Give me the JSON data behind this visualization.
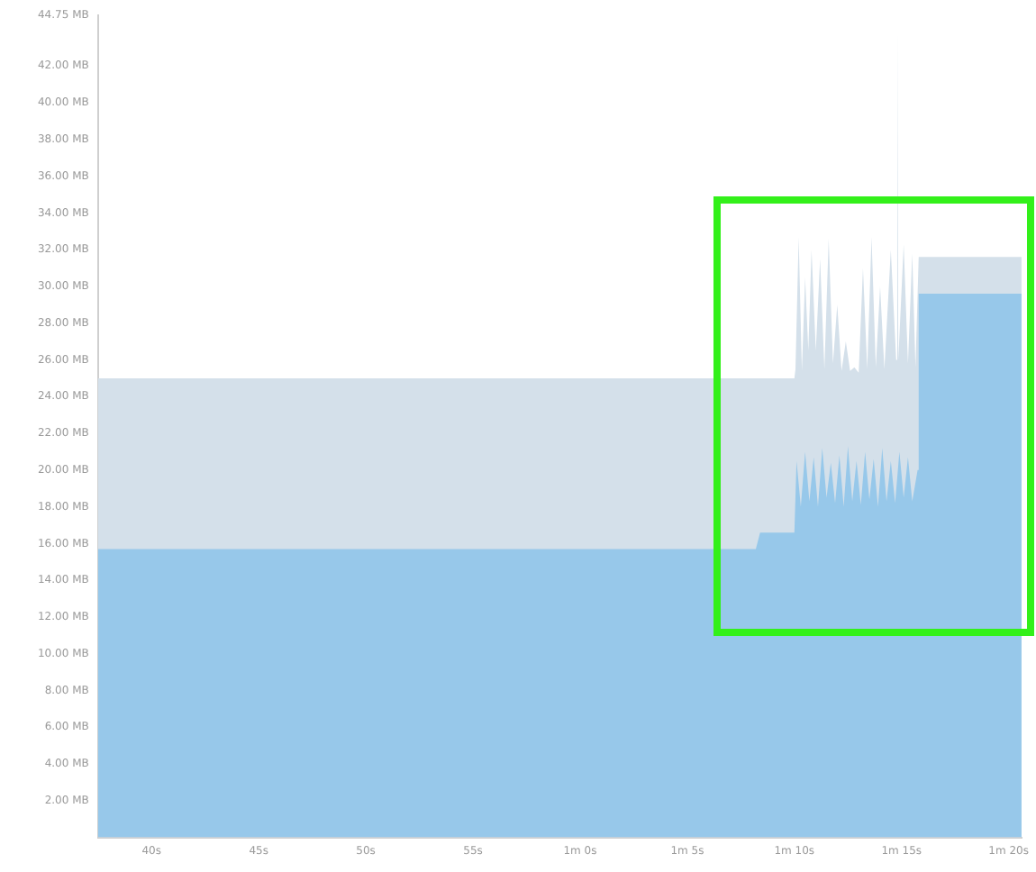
{
  "chart_data": {
    "type": "area",
    "grid": false,
    "legend": false,
    "xlim": [
      37.5,
      80.6
    ],
    "xticks": [
      {
        "value": 40,
        "label": "40s"
      },
      {
        "value": 45,
        "label": "45s"
      },
      {
        "value": 50,
        "label": "50s"
      },
      {
        "value": 55,
        "label": "55s"
      },
      {
        "value": 60,
        "label": "1m 0s"
      },
      {
        "value": 65,
        "label": "1m 5s"
      },
      {
        "value": 70,
        "label": "1m 10s"
      },
      {
        "value": 75,
        "label": "1m 15s"
      },
      {
        "value": 80,
        "label": "1m 20s"
      }
    ],
    "ylim": [
      0,
      44.75
    ],
    "yticks": [
      {
        "value": 2,
        "label": "2.00 MB"
      },
      {
        "value": 4,
        "label": "4.00 MB"
      },
      {
        "value": 6,
        "label": "6.00 MB"
      },
      {
        "value": 8,
        "label": "8.00 MB"
      },
      {
        "value": 10,
        "label": "10.00 MB"
      },
      {
        "value": 12,
        "label": "12.00 MB"
      },
      {
        "value": 14,
        "label": "14.00 MB"
      },
      {
        "value": 16,
        "label": "16.00 MB"
      },
      {
        "value": 18,
        "label": "18.00 MB"
      },
      {
        "value": 20,
        "label": "20.00 MB"
      },
      {
        "value": 22,
        "label": "22.00 MB"
      },
      {
        "value": 24,
        "label": "24.00 MB"
      },
      {
        "value": 26,
        "label": "26.00 MB"
      },
      {
        "value": 28,
        "label": "28.00 MB"
      },
      {
        "value": 30,
        "label": "30.00 MB"
      },
      {
        "value": 32,
        "label": "32.00 MB"
      },
      {
        "value": 34,
        "label": "34.00 MB"
      },
      {
        "value": 36,
        "label": "36.00 MB"
      },
      {
        "value": 38,
        "label": "38.00 MB"
      },
      {
        "value": 40,
        "label": "40.00 MB"
      },
      {
        "value": 42,
        "label": "42.00 MB"
      },
      {
        "value": 44.75,
        "label": "44.75 MB"
      }
    ],
    "series": [
      {
        "color": "#d4e0ea",
        "x": [
          37.5,
          70.0,
          70.05,
          70.2,
          70.35,
          70.5,
          70.65,
          70.8,
          71.0,
          71.2,
          71.4,
          71.6,
          71.8,
          72.0,
          72.2,
          72.4,
          72.6,
          72.8,
          73.0,
          73.2,
          73.4,
          73.6,
          73.8,
          74.0,
          74.2,
          74.5,
          74.75,
          74.8,
          74.85,
          75.1,
          75.3,
          75.5,
          75.65,
          75.8,
          80.6
        ],
        "values": [
          25.0,
          25.0,
          25.5,
          32.7,
          25.4,
          30.5,
          26.5,
          32.0,
          26.5,
          31.5,
          25.5,
          32.6,
          25.8,
          29.0,
          25.4,
          27.0,
          25.4,
          25.6,
          25.3,
          31.0,
          25.5,
          32.7,
          25.6,
          30.0,
          25.5,
          32.0,
          26.0,
          44.5,
          26.0,
          32.3,
          25.8,
          31.8,
          25.6,
          31.6,
          31.6
        ]
      },
      {
        "color": "#97c8ea",
        "x": [
          37.5,
          68.2,
          68.4,
          70.0,
          70.1,
          70.3,
          70.5,
          70.7,
          70.9,
          71.1,
          71.3,
          71.5,
          71.7,
          71.9,
          72.1,
          72.3,
          72.5,
          72.7,
          72.9,
          73.1,
          73.3,
          73.5,
          73.7,
          73.9,
          74.1,
          74.3,
          74.5,
          74.7,
          74.9,
          75.1,
          75.3,
          75.5,
          75.75,
          75.8,
          80.6
        ],
        "values": [
          15.7,
          15.7,
          16.6,
          16.6,
          20.5,
          18.0,
          21.0,
          18.3,
          20.7,
          18.0,
          21.2,
          18.5,
          20.4,
          18.2,
          20.8,
          18.0,
          21.3,
          18.3,
          20.5,
          18.1,
          21.0,
          18.4,
          20.6,
          18.0,
          21.2,
          18.3,
          20.5,
          18.2,
          21.0,
          18.5,
          20.7,
          18.3,
          20.0,
          29.6,
          29.6
        ]
      }
    ]
  }
}
